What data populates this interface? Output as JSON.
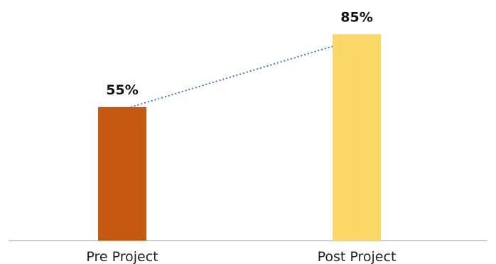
{
  "chart_data": {
    "type": "bar",
    "title": "",
    "xlabel": "",
    "ylabel": "",
    "categories": [
      "Pre Project",
      "Post Project"
    ],
    "values": [
      55,
      85
    ],
    "value_labels": [
      "55%",
      "85%"
    ],
    "ylim": [
      0,
      100
    ],
    "grid": false,
    "legend": "none",
    "connector": "dotted",
    "colors": {
      "bars": [
        "#c4590f",
        "#fdd767"
      ],
      "connector": "#4472c4",
      "baseline": "#bfbfbf",
      "text": "#111111"
    }
  }
}
